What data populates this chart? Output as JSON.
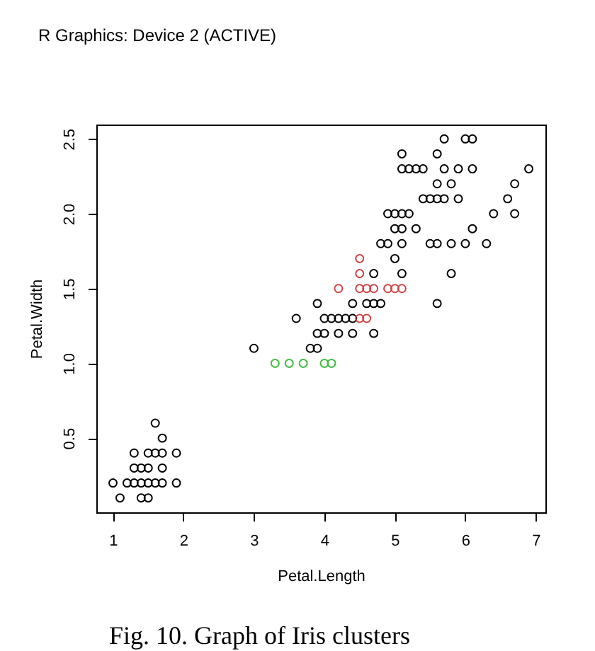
{
  "chart_data": {
    "type": "scatter",
    "marker": "circle",
    "xlabel": "Petal.Length",
    "ylabel": "Petal.Width",
    "annotations": [
      "R Graphics: Device 2 (ACTIVE)",
      "Fig. 10. Graph of Iris clusters"
    ],
    "xlim": [
      0.764,
      7.136
    ],
    "ylim": [
      0.004,
      2.596
    ],
    "xticks": [
      1,
      2,
      3,
      4,
      5,
      6,
      7
    ],
    "yticks": [
      0.5,
      {
        "value": 1.0,
        "label": "1.0"
      },
      1.5,
      {
        "value": 2.0,
        "label": "2.0"
      },
      2.5
    ],
    "series": [
      {
        "color": "#000000",
        "x": [
          1.1,
          1.4,
          1.5,
          1.0,
          1.2,
          1.3,
          1.4,
          1.5,
          1.6,
          1.7,
          1.9,
          1.3,
          1.4,
          1.5,
          1.7,
          1.3,
          1.5,
          1.6,
          1.7,
          1.9,
          1.7,
          1.6,
          3.0,
          3.8,
          3.9,
          3.9,
          4.0,
          4.2,
          4.4,
          4.7,
          3.6,
          4.0,
          4.1,
          4.2,
          4.3,
          4.4,
          3.9,
          4.4,
          4.6,
          4.7,
          4.8,
          4.7,
          5.1,
          5.0,
          4.8,
          5.6,
          5.8,
          4.9,
          5.1,
          5.5,
          5.6,
          5.8,
          6.0,
          6.3,
          5.0,
          5.1,
          5.3,
          6.1,
          4.9,
          5.0,
          5.1,
          5.2,
          6.4,
          6.7,
          5.4,
          5.5,
          5.6,
          5.7,
          5.9,
          6.6,
          5.6,
          5.8,
          6.7,
          5.1,
          5.2,
          5.3,
          5.4,
          5.7,
          5.9,
          6.1,
          6.9,
          5.1,
          5.6,
          5.7,
          6.0,
          6.1
        ],
        "values": [
          0.1,
          0.1,
          0.1,
          0.2,
          0.2,
          0.2,
          0.2,
          0.2,
          0.2,
          0.2,
          0.2,
          0.3,
          0.3,
          0.3,
          0.3,
          0.4,
          0.4,
          0.4,
          0.4,
          0.4,
          0.5,
          0.6,
          1.1,
          1.1,
          1.1,
          1.2,
          1.2,
          1.2,
          1.2,
          1.2,
          1.3,
          1.3,
          1.3,
          1.3,
          1.3,
          1.3,
          1.4,
          1.4,
          1.4,
          1.4,
          1.4,
          1.6,
          1.6,
          1.7,
          1.8,
          1.4,
          1.6,
          1.8,
          1.8,
          1.8,
          1.8,
          1.8,
          1.8,
          1.8,
          1.9,
          1.9,
          1.9,
          1.9,
          2.0,
          2.0,
          2.0,
          2.0,
          2.0,
          2.0,
          2.1,
          2.1,
          2.1,
          2.1,
          2.1,
          2.1,
          2.2,
          2.2,
          2.2,
          2.3,
          2.3,
          2.3,
          2.3,
          2.3,
          2.3,
          2.3,
          2.3,
          2.4,
          2.4,
          2.5,
          2.5,
          2.5
        ]
      },
      {
        "color": "#cc4444",
        "x": [
          4.5,
          4.6,
          4.2,
          4.5,
          4.6,
          4.7,
          4.9,
          5.0,
          5.1,
          4.5,
          4.5
        ],
        "values": [
          1.3,
          1.3,
          1.5,
          1.5,
          1.5,
          1.5,
          1.5,
          1.5,
          1.5,
          1.6,
          1.7
        ]
      },
      {
        "color": "#44bb44",
        "x": [
          3.3,
          3.5,
          3.7,
          4.0,
          4.1
        ],
        "values": [
          1.0,
          1.0,
          1.0,
          1.0,
          1.0
        ]
      }
    ]
  }
}
